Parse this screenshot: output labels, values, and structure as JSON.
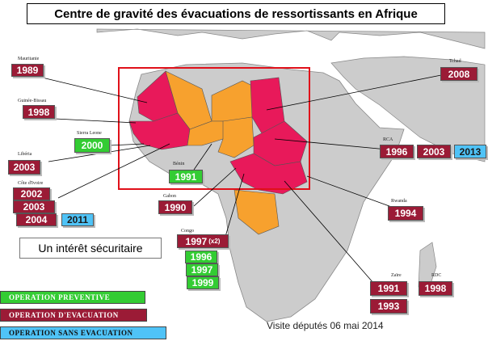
{
  "title": "Centre de gravité des évacuations de ressortissants en Afrique",
  "note": "Un intérêt sécuritaire",
  "footer": "Visite députés 06 mai 2014",
  "colors": {
    "preventive": "#33cc33",
    "evacuation": "#9b1b36",
    "sans_evacuation": "#4fc3f7",
    "map_land": "#cccccc",
    "highlight_evacuation": "#e8195a",
    "highlight_other": "#f7a12e",
    "focus_frame": "#e0101a"
  },
  "legend": [
    {
      "label": "OPERATION PREVENTIVE",
      "color": "green"
    },
    {
      "label": "OPERATION  D'EVACUATION",
      "color": "red"
    },
    {
      "label": "OPERATION  SANS EVACUATION",
      "color": "blue"
    }
  ],
  "countries": {
    "mauritanie": {
      "label": "Mauritanie",
      "years": [
        "1989"
      ]
    },
    "guinee_bissau": {
      "label": "Guinée-Bissau",
      "years": [
        "1998"
      ]
    },
    "sierra_leone": {
      "label": "Sierra Leone",
      "years": [
        "2000"
      ]
    },
    "liberia": {
      "label": "Libéria",
      "years": [
        "2003"
      ]
    },
    "cote_ivoire": {
      "label": "Côte d'Ivoire",
      "years": [
        "2002",
        "2003",
        "2004",
        "2011"
      ]
    },
    "benin": {
      "label": "Bénin",
      "years": [
        "1991"
      ]
    },
    "gabon": {
      "label": "Gabon",
      "years": [
        "1990"
      ]
    },
    "congo": {
      "label": "Congo",
      "years": [
        "1997",
        "1996",
        "1997",
        "1999"
      ],
      "note": "(x2)"
    },
    "tchad": {
      "label": "Tchad",
      "years": [
        "2008"
      ]
    },
    "rca": {
      "label": "RCA",
      "years": [
        "1996",
        "2003",
        "2013"
      ]
    },
    "rwanda": {
      "label": "Rwanda",
      "years": [
        "1994"
      ]
    },
    "zaire": {
      "label": "Zaïre",
      "years": [
        "1991",
        "1993"
      ]
    },
    "rdc": {
      "label": "RDC",
      "years": [
        "1998"
      ]
    }
  }
}
